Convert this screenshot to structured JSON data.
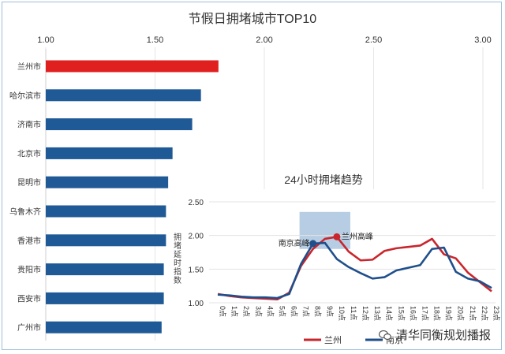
{
  "chart_data": [
    {
      "type": "bar",
      "orientation": "horizontal",
      "title": "节假日拥堵城市TOP10",
      "categories": [
        "兰州市",
        "哈尔滨市",
        "济南市",
        "北京市",
        "昆明市",
        "乌鲁木齐",
        "香港市",
        "贵阳市",
        "西安市",
        "广州市"
      ],
      "values": [
        1.79,
        1.71,
        1.67,
        1.58,
        1.56,
        1.55,
        1.55,
        1.54,
        1.54,
        1.53
      ],
      "bar_colors": [
        "#e0201f",
        "#1f5a96",
        "#1f5a96",
        "#1f5a96",
        "#1f5a96",
        "#1f5a96",
        "#1f5a96",
        "#1f5a96",
        "#1f5a96",
        "#1f5a96"
      ],
      "xlim": [
        1.0,
        3.0
      ],
      "xticks": [
        "1.00",
        "1.50",
        "2.00",
        "2.50",
        "3.00"
      ],
      "axis_position": "top",
      "grid": true
    },
    {
      "type": "line",
      "title": "24小时拥堵趋势",
      "ylabel": "拥堵延时指数",
      "x": [
        "0点",
        "1点",
        "2点",
        "3点",
        "4点",
        "5点",
        "6点",
        "7点",
        "8点",
        "9点",
        "10点",
        "11点",
        "12点",
        "13点",
        "14点",
        "15点",
        "16点",
        "17点",
        "18点",
        "19点",
        "20点",
        "21点",
        "22点",
        "23点"
      ],
      "series": [
        {
          "name": "兰州",
          "color": "#c9252c",
          "values": [
            1.13,
            1.1,
            1.08,
            1.07,
            1.06,
            1.05,
            1.15,
            1.55,
            1.8,
            1.95,
            1.98,
            1.76,
            1.63,
            1.64,
            1.77,
            1.81,
            1.83,
            1.85,
            1.95,
            1.72,
            1.66,
            1.45,
            1.31,
            1.17
          ]
        },
        {
          "name": "南京",
          "color": "#1f4f8b",
          "values": [
            1.12,
            1.11,
            1.09,
            1.08,
            1.08,
            1.07,
            1.13,
            1.58,
            1.88,
            1.89,
            1.65,
            1.53,
            1.44,
            1.36,
            1.38,
            1.48,
            1.52,
            1.56,
            1.8,
            1.82,
            1.46,
            1.36,
            1.32,
            1.22
          ]
        }
      ],
      "ylim": [
        1.0,
        2.5
      ],
      "yticks": [
        "1.00",
        "1.50",
        "2.00",
        "2.50"
      ],
      "highlight_range": [
        "7点",
        "11点"
      ],
      "annotations": [
        {
          "text": "南京高峰",
          "series": "南京",
          "x": "8点"
        },
        {
          "text": "兰州高峰",
          "series": "兰州",
          "x": "10点"
        }
      ],
      "legend": "bottom",
      "grid": true
    }
  ],
  "watermark": {
    "text": "清华同衡规划播报"
  }
}
